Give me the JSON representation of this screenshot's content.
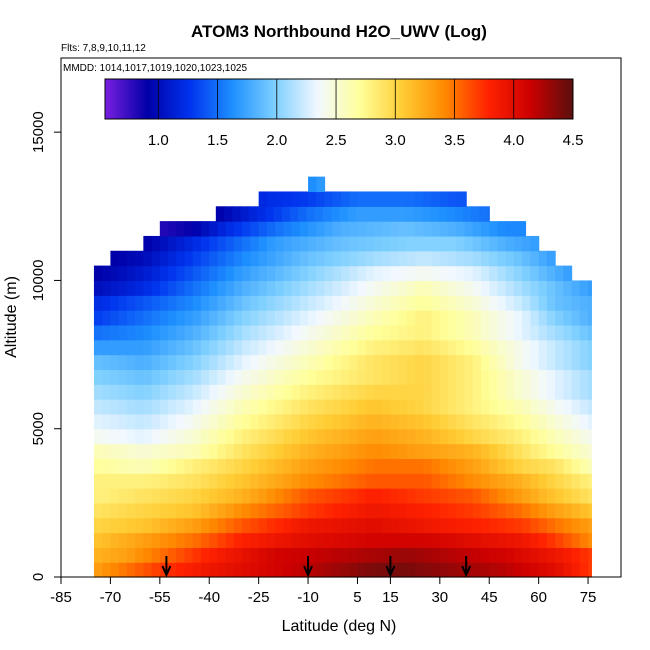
{
  "header": {
    "title": "ATOM3 Northbound H2O_UWV (Log)",
    "flights": "Flts: 7,8,9,10,11,12",
    "mmdd": "MMDD: 1014,1017,1019,1020,1023,1025"
  },
  "chart_data": {
    "type": "heatmap",
    "title": "ATOM3 Northbound H2O_UWV (Log)",
    "xlabel": "Latitude (deg N)",
    "ylabel": "Altitude (m)",
    "xlim": [
      -85,
      85
    ],
    "ylim": [
      0,
      17500
    ],
    "x_ticks": [
      -85,
      -70,
      -55,
      -40,
      -25,
      -10,
      5,
      15,
      30,
      45,
      60,
      75
    ],
    "x_tick_labels": [
      "-85",
      "-70",
      "-55",
      "-40",
      "-25",
      "-10",
      "5",
      "15",
      "30",
      "45",
      "60",
      "75"
    ],
    "y_ticks": [
      0,
      5000,
      10000,
      15000
    ],
    "y_tick_labels": [
      "0",
      "5000",
      "10000",
      "15000"
    ],
    "colorbar": {
      "range": [
        0.55,
        4.5
      ],
      "ticks": [
        1.0,
        1.5,
        2.0,
        2.5,
        3.0,
        3.5,
        4.0,
        4.5
      ],
      "tick_labels": [
        "1.0",
        "1.5",
        "2.0",
        "2.5",
        "3.0",
        "3.5",
        "4.0",
        "4.5"
      ],
      "colors": [
        "#7a1fe0",
        "#0000a8",
        "#0033ee",
        "#1e90ff",
        "#7fd0ff",
        "#f2f8ff",
        "#ffff99",
        "#ffcc33",
        "#ff8800",
        "#ff2200",
        "#cc0000",
        "#5a0f0f"
      ]
    },
    "layers": [
      {
        "alt": 250,
        "values": [
          [
            -75,
            3.3
          ],
          [
            -65,
            3.5
          ],
          [
            -55,
            3.7
          ],
          [
            -40,
            3.9
          ],
          [
            -20,
            4.1
          ],
          [
            0,
            4.3
          ],
          [
            10,
            4.4
          ],
          [
            20,
            4.4
          ],
          [
            35,
            4.3
          ],
          [
            50,
            4.2
          ],
          [
            65,
            4.0
          ],
          [
            76,
            3.7
          ]
        ]
      },
      {
        "alt": 750,
        "values": [
          [
            -75,
            3.2
          ],
          [
            -65,
            3.3
          ],
          [
            -55,
            3.5
          ],
          [
            -40,
            3.8
          ],
          [
            -20,
            4.1
          ],
          [
            0,
            4.2
          ],
          [
            20,
            4.3
          ],
          [
            35,
            4.2
          ],
          [
            50,
            4.1
          ],
          [
            65,
            3.9
          ],
          [
            76,
            3.7
          ]
        ]
      },
      {
        "alt": 1250,
        "values": [
          [
            -75,
            3.1
          ],
          [
            -60,
            3.3
          ],
          [
            -45,
            3.5
          ],
          [
            -30,
            3.8
          ],
          [
            -10,
            4.0
          ],
          [
            10,
            4.1
          ],
          [
            25,
            4.1
          ],
          [
            40,
            4.0
          ],
          [
            55,
            3.9
          ],
          [
            65,
            3.7
          ],
          [
            76,
            3.4
          ]
        ]
      },
      {
        "alt": 1750,
        "values": [
          [
            -75,
            3.0
          ],
          [
            -60,
            3.1
          ],
          [
            -45,
            3.3
          ],
          [
            -30,
            3.6
          ],
          [
            -10,
            3.9
          ],
          [
            10,
            4.0
          ],
          [
            25,
            3.9
          ],
          [
            40,
            3.8
          ],
          [
            55,
            3.7
          ],
          [
            65,
            3.5
          ],
          [
            76,
            3.3
          ]
        ]
      },
      {
        "alt": 2250,
        "values": [
          [
            -75,
            2.9
          ],
          [
            -60,
            3.0
          ],
          [
            -45,
            3.1
          ],
          [
            -30,
            3.4
          ],
          [
            -10,
            3.7
          ],
          [
            10,
            3.9
          ],
          [
            25,
            3.8
          ],
          [
            40,
            3.7
          ],
          [
            55,
            3.5
          ],
          [
            65,
            3.3
          ],
          [
            76,
            3.1
          ]
        ]
      },
      {
        "alt": 2750,
        "values": [
          [
            -75,
            2.8
          ],
          [
            -60,
            2.9
          ],
          [
            -45,
            3.0
          ],
          [
            -30,
            3.2
          ],
          [
            -10,
            3.6
          ],
          [
            10,
            3.8
          ],
          [
            25,
            3.7
          ],
          [
            40,
            3.6
          ],
          [
            55,
            3.3
          ],
          [
            65,
            3.1
          ],
          [
            76,
            2.9
          ]
        ]
      },
      {
        "alt": 3250,
        "values": [
          [
            -75,
            2.8
          ],
          [
            -60,
            2.8
          ],
          [
            -45,
            2.9
          ],
          [
            -30,
            3.1
          ],
          [
            -10,
            3.4
          ],
          [
            10,
            3.6
          ],
          [
            25,
            3.6
          ],
          [
            40,
            3.4
          ],
          [
            55,
            3.2
          ],
          [
            65,
            3.0
          ],
          [
            76,
            2.8
          ]
        ]
      },
      {
        "alt": 3750,
        "values": [
          [
            -75,
            2.7
          ],
          [
            -60,
            2.6
          ],
          [
            -45,
            2.8
          ],
          [
            -30,
            3.0
          ],
          [
            -10,
            3.3
          ],
          [
            10,
            3.5
          ],
          [
            25,
            3.5
          ],
          [
            40,
            3.3
          ],
          [
            55,
            3.0
          ],
          [
            65,
            2.9
          ],
          [
            76,
            2.6
          ]
        ]
      },
      {
        "alt": 4250,
        "values": [
          [
            -75,
            2.6
          ],
          [
            -60,
            2.5
          ],
          [
            -45,
            2.6
          ],
          [
            -30,
            2.9
          ],
          [
            -10,
            3.2
          ],
          [
            10,
            3.4
          ],
          [
            25,
            3.3
          ],
          [
            40,
            3.2
          ],
          [
            55,
            2.9
          ],
          [
            65,
            2.7
          ],
          [
            76,
            2.5
          ]
        ]
      },
      {
        "alt": 4750,
        "values": [
          [
            -75,
            2.4
          ],
          [
            -60,
            2.3
          ],
          [
            -45,
            2.5
          ],
          [
            -30,
            2.8
          ],
          [
            -10,
            3.1
          ],
          [
            10,
            3.3
          ],
          [
            25,
            3.2
          ],
          [
            40,
            3.0
          ],
          [
            55,
            2.8
          ],
          [
            65,
            2.6
          ],
          [
            76,
            2.4
          ]
        ]
      },
      {
        "alt": 5250,
        "values": [
          [
            -75,
            2.3
          ],
          [
            -60,
            2.2
          ],
          [
            -45,
            2.4
          ],
          [
            -30,
            2.7
          ],
          [
            -10,
            3.0
          ],
          [
            10,
            3.2
          ],
          [
            25,
            3.1
          ],
          [
            40,
            2.9
          ],
          [
            55,
            2.7
          ],
          [
            65,
            2.5
          ],
          [
            76,
            2.3
          ]
        ]
      },
      {
        "alt": 5750,
        "values": [
          [
            -75,
            2.2
          ],
          [
            -60,
            2.1
          ],
          [
            -45,
            2.3
          ],
          [
            -30,
            2.6
          ],
          [
            -10,
            2.9
          ],
          [
            10,
            3.1
          ],
          [
            25,
            3.0
          ],
          [
            40,
            2.8
          ],
          [
            55,
            2.6
          ],
          [
            65,
            2.4
          ],
          [
            76,
            2.2
          ]
        ]
      },
      {
        "alt": 6250,
        "values": [
          [
            -75,
            2.1
          ],
          [
            -60,
            2.0
          ],
          [
            -45,
            2.2
          ],
          [
            -30,
            2.5
          ],
          [
            -10,
            2.8
          ],
          [
            10,
            3.0
          ],
          [
            25,
            3.0
          ],
          [
            40,
            2.8
          ],
          [
            55,
            2.5
          ],
          [
            65,
            2.3
          ],
          [
            76,
            2.1
          ]
        ]
      },
      {
        "alt": 6750,
        "values": [
          [
            -75,
            2.0
          ],
          [
            -60,
            1.9
          ],
          [
            -45,
            2.1
          ],
          [
            -30,
            2.4
          ],
          [
            -10,
            2.7
          ],
          [
            10,
            2.9
          ],
          [
            25,
            3.0
          ],
          [
            40,
            2.8
          ],
          [
            55,
            2.5
          ],
          [
            65,
            2.3
          ],
          [
            76,
            2.1
          ]
        ]
      },
      {
        "alt": 7250,
        "values": [
          [
            -75,
            1.9
          ],
          [
            -60,
            1.8
          ],
          [
            -45,
            2.0
          ],
          [
            -30,
            2.3
          ],
          [
            -10,
            2.6
          ],
          [
            10,
            2.9
          ],
          [
            25,
            3.0
          ],
          [
            40,
            2.8
          ],
          [
            55,
            2.4
          ],
          [
            65,
            2.2
          ],
          [
            76,
            2.0
          ]
        ]
      },
      {
        "alt": 7750,
        "values": [
          [
            -75,
            1.7
          ],
          [
            -60,
            1.7
          ],
          [
            -45,
            1.9
          ],
          [
            -30,
            2.2
          ],
          [
            -10,
            2.5
          ],
          [
            10,
            2.8
          ],
          [
            25,
            2.9
          ],
          [
            40,
            2.7
          ],
          [
            55,
            2.4
          ],
          [
            65,
            2.2
          ],
          [
            76,
            2.0
          ]
        ]
      },
      {
        "alt": 8250,
        "values": [
          [
            -75,
            1.5
          ],
          [
            -60,
            1.6
          ],
          [
            -45,
            1.8
          ],
          [
            -30,
            2.1
          ],
          [
            -10,
            2.4
          ],
          [
            10,
            2.7
          ],
          [
            25,
            2.8
          ],
          [
            40,
            2.6
          ],
          [
            55,
            2.3
          ],
          [
            65,
            2.1
          ],
          [
            76,
            1.9
          ]
        ]
      },
      {
        "alt": 8750,
        "values": [
          [
            -75,
            1.3
          ],
          [
            -60,
            1.5
          ],
          [
            -45,
            1.7
          ],
          [
            -30,
            2.0
          ],
          [
            -10,
            2.3
          ],
          [
            10,
            2.6
          ],
          [
            25,
            2.8
          ],
          [
            40,
            2.6
          ],
          [
            55,
            2.3
          ],
          [
            65,
            2.0
          ],
          [
            76,
            1.8
          ]
        ]
      },
      {
        "alt": 9250,
        "values": [
          [
            -75,
            1.2
          ],
          [
            -60,
            1.4
          ],
          [
            -45,
            1.6
          ],
          [
            -30,
            1.9
          ],
          [
            -10,
            2.2
          ],
          [
            10,
            2.5
          ],
          [
            25,
            2.7
          ],
          [
            40,
            2.5
          ],
          [
            55,
            2.2
          ],
          [
            65,
            1.9
          ],
          [
            76,
            1.8
          ]
        ]
      },
      {
        "alt": 9750,
        "values": [
          [
            -75,
            1.0
          ],
          [
            -60,
            1.2
          ],
          [
            -45,
            1.5
          ],
          [
            -30,
            1.8
          ],
          [
            -10,
            2.1
          ],
          [
            10,
            2.4
          ],
          [
            25,
            2.6
          ],
          [
            40,
            2.4
          ],
          [
            55,
            2.1
          ],
          [
            65,
            1.9
          ],
          [
            76,
            1.7
          ]
        ]
      },
      {
        "alt": 10250,
        "values": [
          [
            -75,
            0.9
          ],
          [
            -60,
            1.1
          ],
          [
            -45,
            1.4
          ],
          [
            -30,
            1.7
          ],
          [
            -10,
            2.0
          ],
          [
            10,
            2.3
          ],
          [
            25,
            2.4
          ],
          [
            40,
            2.3
          ],
          [
            55,
            2.0
          ],
          [
            65,
            1.8
          ],
          [
            70,
            1.7
          ]
        ]
      },
      {
        "alt": 10750,
        "values": [
          [
            -70,
            0.9
          ],
          [
            -60,
            1.0
          ],
          [
            -45,
            1.3
          ],
          [
            -30,
            1.6
          ],
          [
            -10,
            1.9
          ],
          [
            10,
            2.1
          ],
          [
            25,
            2.2
          ],
          [
            40,
            2.1
          ],
          [
            55,
            1.9
          ],
          [
            65,
            1.7
          ]
        ]
      },
      {
        "alt": 11250,
        "values": [
          [
            -60,
            0.9
          ],
          [
            -50,
            1.1
          ],
          [
            -35,
            1.4
          ],
          [
            -20,
            1.7
          ],
          [
            0,
            1.9
          ],
          [
            20,
            2.0
          ],
          [
            35,
            2.0
          ],
          [
            50,
            1.8
          ],
          [
            60,
            1.7
          ]
        ]
      },
      {
        "alt": 11750,
        "values": [
          [
            -55,
            0.8
          ],
          [
            -45,
            0.9
          ],
          [
            -35,
            1.2
          ],
          [
            -20,
            1.5
          ],
          [
            0,
            1.8
          ],
          [
            20,
            1.9
          ],
          [
            35,
            1.8
          ],
          [
            50,
            1.6
          ],
          [
            56,
            1.6
          ]
        ]
      },
      {
        "alt": 12250,
        "values": [
          [
            -38,
            0.9
          ],
          [
            -25,
            1.2
          ],
          [
            -10,
            1.5
          ],
          [
            5,
            1.7
          ],
          [
            20,
            1.7
          ],
          [
            35,
            1.6
          ],
          [
            45,
            1.5
          ]
        ]
      },
      {
        "alt": 12750,
        "values": [
          [
            -25,
            1.2
          ],
          [
            -10,
            1.3
          ],
          [
            5,
            1.5
          ],
          [
            20,
            1.5
          ],
          [
            35,
            1.4
          ],
          [
            38,
            1.4
          ]
        ]
      },
      {
        "alt": 13250,
        "values": [
          [
            -10,
            1.6
          ],
          [
            -5,
            1.7
          ]
        ]
      }
    ],
    "arrows_latitude": [
      -53,
      -10,
      15,
      38
    ],
    "grid": false
  }
}
